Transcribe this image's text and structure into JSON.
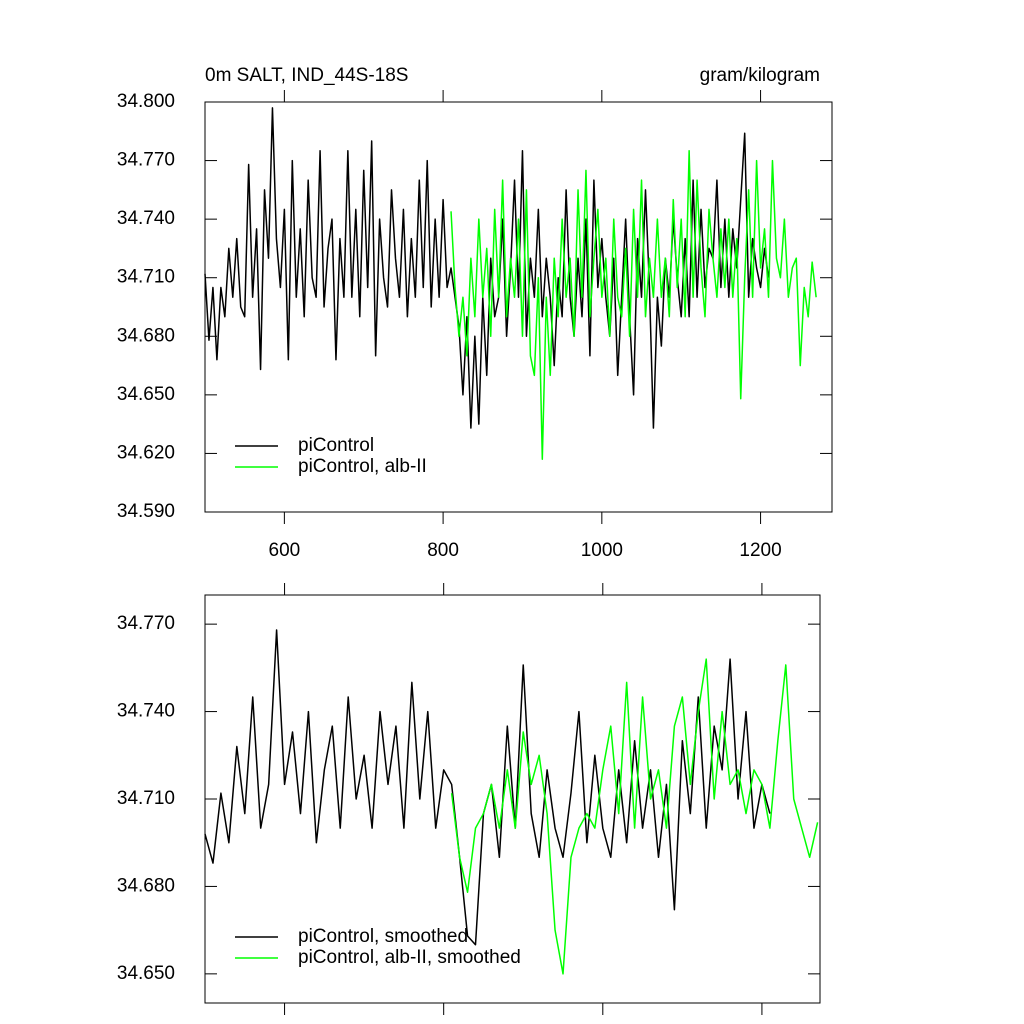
{
  "chart_data": [
    {
      "type": "line",
      "title": "0m SALT, IND_44S-18S",
      "units": "gram/kilogram",
      "xlim": [
        500,
        1290
      ],
      "xticks": [
        600,
        800,
        1000,
        1200
      ],
      "ylim": [
        34.59,
        34.8
      ],
      "yticks": [
        {
          "value": 34.59,
          "label": "34.590"
        },
        {
          "value": 34.62,
          "label": "34.620"
        },
        {
          "value": 34.65,
          "label": "34.650"
        },
        {
          "value": 34.68,
          "label": "34.680"
        },
        {
          "value": 34.71,
          "label": "34.710"
        },
        {
          "value": 34.74,
          "label": "34.740"
        },
        {
          "value": 34.77,
          "label": "34.770"
        },
        {
          "value": 34.8,
          "label": "34.800"
        }
      ],
      "legend": "lower left",
      "series": [
        {
          "name": "piControl",
          "color": "#000000",
          "x": [
            500,
            505,
            510,
            515,
            520,
            525,
            530,
            535,
            540,
            545,
            550,
            555,
            560,
            565,
            570,
            575,
            580,
            585,
            590,
            595,
            600,
            605,
            610,
            615,
            620,
            625,
            630,
            635,
            640,
            645,
            650,
            655,
            660,
            665,
            670,
            675,
            680,
            685,
            690,
            695,
            700,
            705,
            710,
            715,
            720,
            725,
            730,
            735,
            740,
            745,
            750,
            755,
            760,
            765,
            770,
            775,
            780,
            785,
            790,
            795,
            800,
            805,
            810,
            815,
            820,
            825,
            830,
            835,
            840,
            845,
            850,
            855,
            860,
            865,
            870,
            875,
            880,
            885,
            890,
            895,
            900,
            905,
            910,
            915,
            920,
            925,
            930,
            935,
            940,
            945,
            950,
            955,
            960,
            965,
            970,
            975,
            980,
            985,
            990,
            995,
            1000,
            1005,
            1010,
            1015,
            1020,
            1025,
            1030,
            1035,
            1040,
            1045,
            1050,
            1055,
            1060,
            1065,
            1070,
            1075,
            1080,
            1085,
            1090,
            1095,
            1100,
            1105,
            1110,
            1115,
            1120,
            1125,
            1130,
            1135,
            1140,
            1145,
            1150,
            1155,
            1160,
            1165,
            1170,
            1175,
            1180,
            1185,
            1190,
            1195,
            1200,
            1205,
            1210
          ],
          "values": [
            34.712,
            34.678,
            34.705,
            34.668,
            34.705,
            34.69,
            34.725,
            34.7,
            34.73,
            34.695,
            34.69,
            34.768,
            34.7,
            34.735,
            34.663,
            34.755,
            34.72,
            34.797,
            34.73,
            34.705,
            34.745,
            34.668,
            34.77,
            34.7,
            34.735,
            34.69,
            34.76,
            34.71,
            34.7,
            34.775,
            34.695,
            34.725,
            34.74,
            34.668,
            34.73,
            34.7,
            34.775,
            34.7,
            34.745,
            34.69,
            34.765,
            34.705,
            34.78,
            34.67,
            34.74,
            34.71,
            34.695,
            34.755,
            34.72,
            34.7,
            34.745,
            34.69,
            34.73,
            34.7,
            34.76,
            34.705,
            34.77,
            34.695,
            34.74,
            34.7,
            34.75,
            34.705,
            34.715,
            34.7,
            34.685,
            34.65,
            34.69,
            34.633,
            34.68,
            34.635,
            34.7,
            34.66,
            34.72,
            34.69,
            34.7,
            34.74,
            34.68,
            34.715,
            34.76,
            34.7,
            34.775,
            34.68,
            34.72,
            34.7,
            34.745,
            34.69,
            34.72,
            34.7,
            34.665,
            34.71,
            34.69,
            34.755,
            34.7,
            34.68,
            34.72,
            34.69,
            34.74,
            34.67,
            34.76,
            34.705,
            34.73,
            34.7,
            34.68,
            34.72,
            34.66,
            34.7,
            34.74,
            34.69,
            34.65,
            34.73,
            34.7,
            34.755,
            34.705,
            34.633,
            34.7,
            34.675,
            34.72,
            34.7,
            34.74,
            34.71,
            34.69,
            34.73,
            34.69,
            34.76,
            34.7,
            34.745,
            34.705,
            34.725,
            34.72,
            34.76,
            34.705,
            34.74,
            34.7,
            34.735,
            34.715,
            34.75,
            34.784,
            34.7,
            34.73,
            34.715,
            34.705,
            34.725,
            34.71
          ]
        },
        {
          "name": "piControl, alb-II",
          "color": "#00ff00",
          "x": [
            810,
            815,
            820,
            825,
            830,
            835,
            840,
            845,
            850,
            855,
            860,
            865,
            870,
            875,
            880,
            885,
            890,
            895,
            900,
            905,
            910,
            915,
            920,
            925,
            930,
            935,
            940,
            945,
            950,
            955,
            960,
            965,
            970,
            975,
            980,
            985,
            990,
            995,
            1000,
            1005,
            1010,
            1015,
            1020,
            1025,
            1030,
            1035,
            1040,
            1045,
            1050,
            1055,
            1060,
            1065,
            1070,
            1075,
            1080,
            1085,
            1090,
            1095,
            1100,
            1105,
            1110,
            1115,
            1120,
            1125,
            1130,
            1135,
            1140,
            1145,
            1150,
            1155,
            1160,
            1165,
            1170,
            1175,
            1180,
            1185,
            1190,
            1195,
            1200,
            1205,
            1210,
            1215,
            1220,
            1225,
            1230,
            1235,
            1240,
            1245,
            1250,
            1255,
            1260,
            1265,
            1270
          ],
          "values": [
            34.744,
            34.705,
            34.68,
            34.7,
            34.67,
            34.72,
            34.69,
            34.74,
            34.7,
            34.725,
            34.68,
            34.745,
            34.7,
            34.76,
            34.69,
            34.72,
            34.7,
            34.74,
            34.68,
            34.755,
            34.67,
            34.66,
            34.71,
            34.617,
            34.7,
            34.66,
            34.72,
            34.69,
            34.74,
            34.7,
            34.72,
            34.68,
            34.755,
            34.7,
            34.765,
            34.69,
            34.72,
            34.745,
            34.7,
            34.72,
            34.68,
            34.74,
            34.7,
            34.69,
            34.725,
            34.68,
            34.745,
            34.7,
            34.76,
            34.69,
            34.72,
            34.7,
            34.74,
            34.7,
            34.72,
            34.69,
            34.75,
            34.705,
            34.74,
            34.69,
            34.775,
            34.7,
            34.76,
            34.715,
            34.69,
            34.745,
            34.72,
            34.7,
            34.735,
            34.705,
            34.74,
            34.7,
            34.73,
            34.648,
            34.71,
            34.755,
            34.7,
            34.77,
            34.715,
            34.735,
            34.7,
            34.77,
            34.72,
            34.71,
            34.74,
            34.7,
            34.715,
            34.72,
            34.665,
            34.705,
            34.69,
            34.718,
            34.7
          ]
        }
      ]
    },
    {
      "type": "line",
      "xlim": [
        500,
        1273
      ],
      "xticks": [
        600,
        800,
        1000,
        1200
      ],
      "ylim": [
        34.64,
        34.78
      ],
      "yticks": [
        {
          "value": 34.65,
          "label": "34.650"
        },
        {
          "value": 34.68,
          "label": "34.680"
        },
        {
          "value": 34.71,
          "label": "34.710"
        },
        {
          "value": 34.74,
          "label": "34.740"
        },
        {
          "value": 34.77,
          "label": "34.770"
        }
      ],
      "legend": "lower left",
      "series": [
        {
          "name": "piControl, smoothed",
          "color": "#000000",
          "x": [
            500,
            510,
            520,
            530,
            540,
            550,
            560,
            570,
            580,
            590,
            600,
            610,
            620,
            630,
            640,
            650,
            660,
            670,
            680,
            690,
            700,
            710,
            720,
            730,
            740,
            750,
            760,
            770,
            780,
            790,
            800,
            810,
            820,
            830,
            840,
            850,
            860,
            870,
            880,
            890,
            900,
            910,
            920,
            930,
            940,
            950,
            960,
            970,
            980,
            990,
            1000,
            1010,
            1020,
            1030,
            1040,
            1050,
            1060,
            1070,
            1080,
            1090,
            1100,
            1110,
            1120,
            1130,
            1140,
            1150,
            1160,
            1170,
            1180,
            1190,
            1200,
            1210
          ],
          "values": [
            34.698,
            34.688,
            34.712,
            34.695,
            34.728,
            34.705,
            34.745,
            34.7,
            34.715,
            34.768,
            34.715,
            34.733,
            34.705,
            34.74,
            34.695,
            34.72,
            34.735,
            34.7,
            34.745,
            34.71,
            34.725,
            34.7,
            34.74,
            34.715,
            34.735,
            34.7,
            34.75,
            34.71,
            34.74,
            34.7,
            34.72,
            34.715,
            34.69,
            34.663,
            34.66,
            34.705,
            34.715,
            34.69,
            34.735,
            34.7,
            34.756,
            34.705,
            34.69,
            34.72,
            34.7,
            34.69,
            34.712,
            34.74,
            34.695,
            34.725,
            34.7,
            34.69,
            34.72,
            34.695,
            34.73,
            34.7,
            34.72,
            34.69,
            34.715,
            34.672,
            34.73,
            34.705,
            34.745,
            34.7,
            34.735,
            34.72,
            34.758,
            34.71,
            34.74,
            34.7,
            34.715,
            34.705
          ]
        },
        {
          "name": "piControl, alb-II, smoothed",
          "color": "#00ff00",
          "x": [
            810,
            820,
            830,
            840,
            850,
            860,
            870,
            880,
            890,
            900,
            910,
            920,
            930,
            940,
            950,
            960,
            970,
            980,
            990,
            1000,
            1010,
            1020,
            1030,
            1040,
            1050,
            1060,
            1070,
            1080,
            1090,
            1100,
            1110,
            1120,
            1130,
            1140,
            1150,
            1160,
            1170,
            1180,
            1190,
            1200,
            1210,
            1220,
            1230,
            1240,
            1250,
            1260,
            1270
          ],
          "values": [
            34.712,
            34.69,
            34.678,
            34.7,
            34.705,
            34.715,
            34.7,
            34.72,
            34.7,
            34.733,
            34.715,
            34.725,
            34.705,
            34.665,
            34.65,
            34.69,
            34.7,
            34.705,
            34.7,
            34.72,
            34.735,
            34.705,
            34.75,
            34.7,
            34.745,
            34.71,
            34.72,
            34.7,
            34.735,
            34.745,
            34.715,
            34.74,
            34.758,
            34.71,
            34.74,
            34.715,
            34.72,
            34.705,
            34.72,
            34.715,
            34.7,
            34.73,
            34.756,
            34.71,
            34.7,
            34.69,
            34.702
          ]
        }
      ]
    }
  ]
}
